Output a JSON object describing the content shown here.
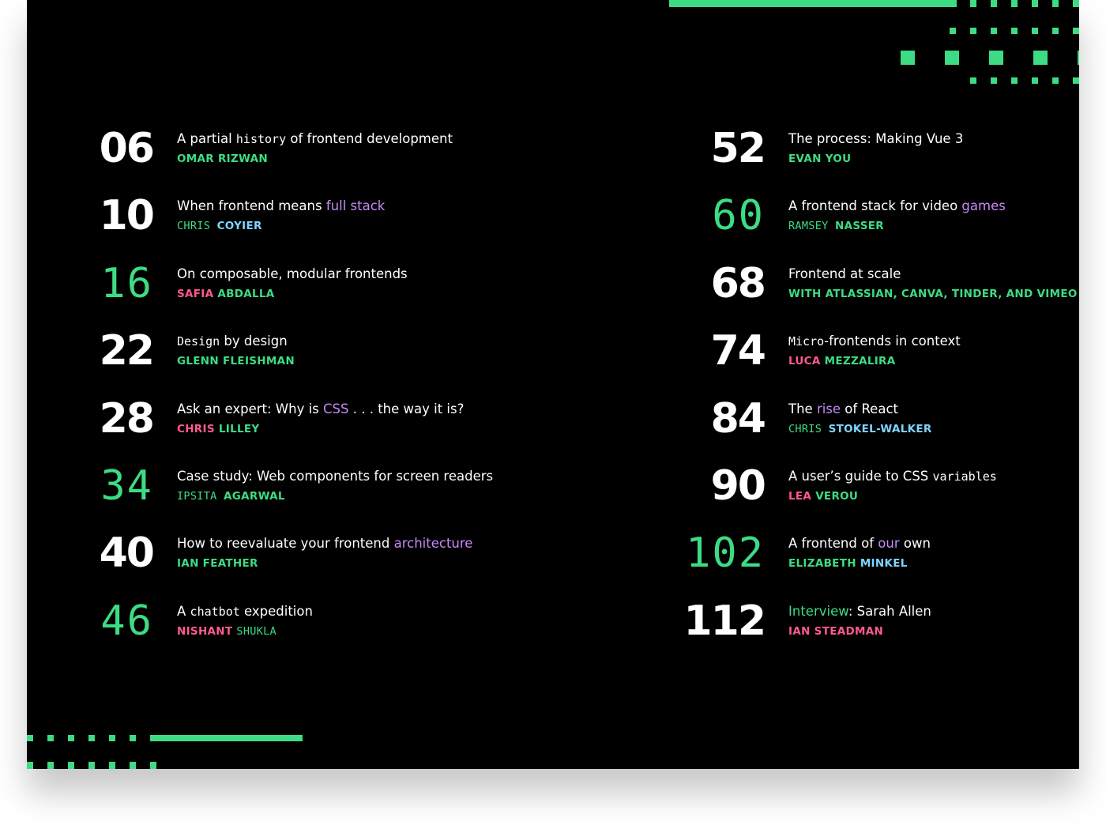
{
  "colors": {
    "background": "#000000",
    "accent_green": "#3ddc84",
    "accent_purple": "#c58af9",
    "accent_pink": "#ff5a8c",
    "accent_blue": "#7fd4ff",
    "text": "#ffffff"
  },
  "entries": [
    {
      "number": "06",
      "pixel": false,
      "title": [
        {
          "t": "A partial "
        },
        {
          "t": "history",
          "mono": true
        },
        {
          "t": " of frontend development"
        }
      ],
      "author": [
        {
          "t": "OMAR RIZWAN",
          "c": "green"
        }
      ]
    },
    {
      "number": "10",
      "pixel": false,
      "title": [
        {
          "t": "When frontend means "
        },
        {
          "t": "full stack",
          "c": "purple"
        }
      ],
      "author": [
        {
          "t": "CHRIS ",
          "c": "green",
          "mono": true
        },
        {
          "t": "COYIER",
          "c": "blue"
        }
      ]
    },
    {
      "number": "16",
      "pixel": true,
      "title": [
        {
          "t": "On composable, modular frontends"
        }
      ],
      "author": [
        {
          "t": "SAFIA ",
          "c": "pink"
        },
        {
          "t": "ABDALLA",
          "c": "green"
        }
      ]
    },
    {
      "number": "22",
      "pixel": false,
      "title": [
        {
          "t": "Design",
          "mono": true
        },
        {
          "t": " by design"
        }
      ],
      "author": [
        {
          "t": "GLENN FLEISHMAN",
          "c": "green"
        }
      ]
    },
    {
      "number": "28",
      "pixel": false,
      "title": [
        {
          "t": "Ask an expert: Why is "
        },
        {
          "t": "CSS",
          "c": "purple"
        },
        {
          "t": " . . . the way it is?"
        }
      ],
      "author": [
        {
          "t": "CHRIS ",
          "c": "pink"
        },
        {
          "t": "LILLEY",
          "c": "green"
        }
      ]
    },
    {
      "number": "34",
      "pixel": true,
      "title": [
        {
          "t": "Case study: Web components for screen readers"
        }
      ],
      "author": [
        {
          "t": "IPSITA ",
          "c": "green",
          "mono": true
        },
        {
          "t": "AGARWAL",
          "c": "green"
        }
      ]
    },
    {
      "number": "40",
      "pixel": false,
      "title": [
        {
          "t": "How to reevaluate your frontend "
        },
        {
          "t": "architecture",
          "c": "purple"
        }
      ],
      "author": [
        {
          "t": "IAN FEATHER",
          "c": "green"
        }
      ]
    },
    {
      "number": "46",
      "pixel": true,
      "title": [
        {
          "t": "A "
        },
        {
          "t": "chatbot",
          "mono": true
        },
        {
          "t": " expedition"
        }
      ],
      "author": [
        {
          "t": "NISHANT ",
          "c": "pink"
        },
        {
          "t": "SHUKLA",
          "c": "green",
          "mono": true
        }
      ]
    },
    {
      "number": "52",
      "pixel": false,
      "title": [
        {
          "t": "The process: Making Vue 3"
        }
      ],
      "author": [
        {
          "t": "EVAN YOU",
          "c": "green"
        }
      ]
    },
    {
      "number": "60",
      "pixel": true,
      "title": [
        {
          "t": "A frontend stack for video "
        },
        {
          "t": "games",
          "c": "purple"
        }
      ],
      "author": [
        {
          "t": "RAMSEY ",
          "c": "green",
          "mono": true
        },
        {
          "t": "NASSER",
          "c": "green"
        }
      ]
    },
    {
      "number": "68",
      "pixel": false,
      "title": [
        {
          "t": "Frontend at scale"
        }
      ],
      "author": [
        {
          "t": "WITH ATLASSIAN, CANVA, TINDER, AND VIMEO",
          "c": "green"
        }
      ]
    },
    {
      "number": "74",
      "pixel": false,
      "title": [
        {
          "t": "Micro",
          "mono": true
        },
        {
          "t": "-frontends in context"
        }
      ],
      "author": [
        {
          "t": "LUCA ",
          "c": "pink"
        },
        {
          "t": "MEZZALIRA",
          "c": "green"
        }
      ]
    },
    {
      "number": "84",
      "pixel": false,
      "title": [
        {
          "t": "The "
        },
        {
          "t": "rise",
          "c": "purple"
        },
        {
          "t": " of React"
        }
      ],
      "author": [
        {
          "t": "CHRIS ",
          "c": "green",
          "mono": true
        },
        {
          "t": "STOKEL-WALKER",
          "c": "blue"
        }
      ]
    },
    {
      "number": "90",
      "pixel": false,
      "title": [
        {
          "t": "A user’s guide to CSS "
        },
        {
          "t": "variables",
          "mono": true
        }
      ],
      "author": [
        {
          "t": "LEA ",
          "c": "pink"
        },
        {
          "t": "VEROU",
          "c": "green"
        }
      ]
    },
    {
      "number": "102",
      "pixel": true,
      "title": [
        {
          "t": "A frontend of "
        },
        {
          "t": "our",
          "c": "purple"
        },
        {
          "t": " own"
        }
      ],
      "author": [
        {
          "t": "ELIZABETH ",
          "c": "green"
        },
        {
          "t": "MINKEL",
          "c": "blue"
        }
      ]
    },
    {
      "number": "112",
      "pixel": false,
      "title": [
        {
          "t": "Interview",
          "c": "green"
        },
        {
          "t": ": Sarah Allen"
        }
      ],
      "author": [
        {
          "t": "IAN STEADMAN",
          "c": "pink"
        }
      ]
    }
  ]
}
